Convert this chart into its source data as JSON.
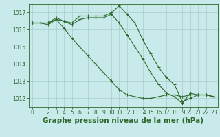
{
  "title": "Graphe pression niveau de la mer (hPa)",
  "background_color": "#c8eaea",
  "grid_color": "#a8cccc",
  "line_color": "#2d6a2d",
  "xlim": [
    -0.5,
    23.5
  ],
  "ylim": [
    1011.5,
    1017.5
  ],
  "yticks": [
    1012,
    1013,
    1014,
    1015,
    1016,
    1017
  ],
  "xticks": [
    0,
    1,
    2,
    3,
    4,
    5,
    6,
    7,
    8,
    9,
    10,
    11,
    12,
    13,
    14,
    15,
    16,
    17,
    18,
    19,
    20,
    21,
    22,
    23
  ],
  "series": [
    [
      1016.4,
      1016.4,
      1016.4,
      1016.6,
      1016.5,
      1016.4,
      1016.8,
      1016.8,
      1016.8,
      1016.8,
      1017.0,
      1017.4,
      1016.9,
      1016.4,
      1015.4,
      1014.6,
      1013.8,
      1013.2,
      1012.8,
      1011.8,
      1012.0,
      1012.2,
      1012.2,
      1012.1
    ],
    [
      1016.4,
      1016.4,
      1016.4,
      1016.7,
      1016.5,
      1016.3,
      1016.6,
      1016.7,
      1016.7,
      1016.7,
      1016.9,
      1016.4,
      1015.7,
      1015.0,
      1014.3,
      1013.5,
      1012.8,
      1012.3,
      1012.1,
      1011.7,
      1012.3,
      1012.2,
      1012.2,
      1012.1
    ],
    [
      1016.4,
      1016.4,
      1016.3,
      1016.6,
      1016.1,
      1015.5,
      1015.0,
      1014.5,
      1014.0,
      1013.5,
      1013.0,
      1012.5,
      1012.2,
      1012.1,
      1012.0,
      1012.0,
      1012.1,
      1012.2,
      1012.2,
      1012.1,
      1012.2,
      1012.2,
      1012.2,
      1012.1
    ]
  ],
  "title_fontsize": 7.5,
  "tick_fontsize": 5.5,
  "figwidth": 3.2,
  "figheight": 2.0,
  "dpi": 100
}
